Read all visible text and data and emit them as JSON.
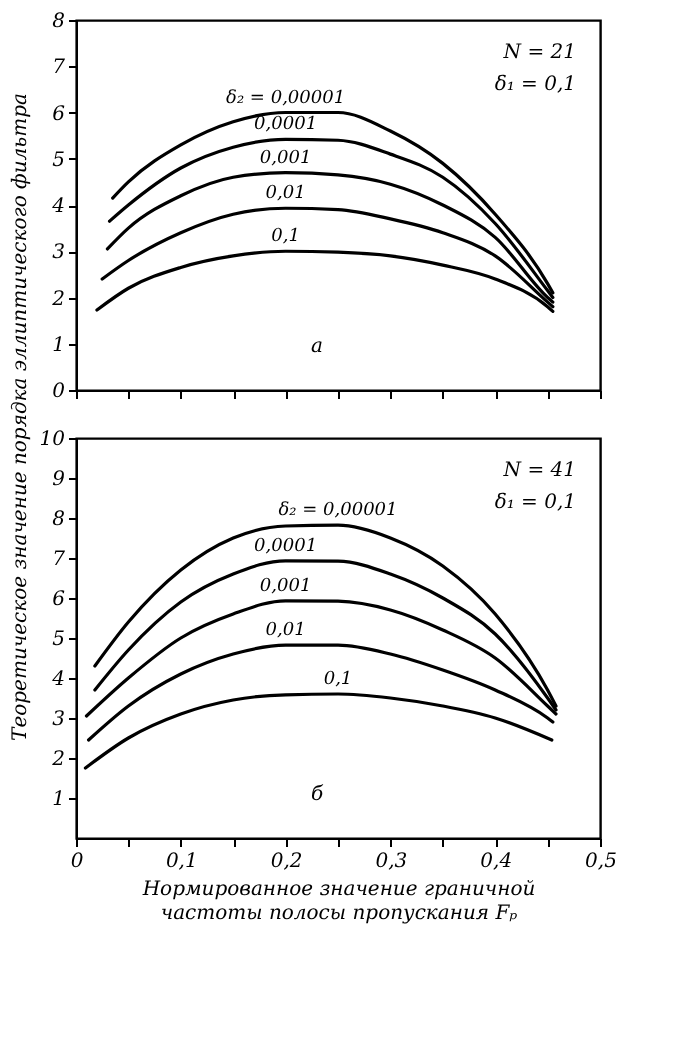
{
  "chart_data": [
    {
      "type": "line",
      "ylabel": "Теоретическое значение порядка эллиптического фильтра",
      "xlim": [
        0,
        0.5
      ],
      "xticks": [
        {
          "value": 0,
          "label": null
        },
        {
          "value": 0.05,
          "label": null
        },
        {
          "value": 0.1,
          "label": null
        },
        {
          "value": 0.15,
          "label": null
        },
        {
          "value": 0.2,
          "label": null
        },
        {
          "value": 0.25,
          "label": null
        },
        {
          "value": 0.3,
          "label": null
        },
        {
          "value": 0.35,
          "label": null
        },
        {
          "value": 0.4,
          "label": null
        },
        {
          "value": 0.45,
          "label": null
        },
        {
          "value": 0.5,
          "label": null
        }
      ],
      "ylim": [
        0,
        8
      ],
      "yticks": [
        0,
        1,
        2,
        3,
        4,
        5,
        6,
        7,
        8
      ],
      "tick_labels": "y",
      "grid": false,
      "legend": false,
      "marker": "none",
      "line_style": "solid",
      "annotations": [
        "N = 21",
        "δ₁ = 0,1",
        "а"
      ],
      "series": [
        {
          "name": "δ₂ = 0,00001",
          "color": "#000000",
          "x": [
            0.035,
            0.05,
            0.1,
            0.15,
            0.2,
            0.25,
            0.3,
            0.35,
            0.4,
            0.45,
            0.455
          ],
          "values": [
            4.15,
            4.5,
            5.3,
            5.8,
            6.0,
            6.0,
            5.6,
            4.9,
            3.8,
            2.3,
            2.1
          ]
        },
        {
          "name": "0,0001",
          "color": "#000000",
          "x": [
            0.032,
            0.05,
            0.1,
            0.15,
            0.2,
            0.25,
            0.3,
            0.35,
            0.4,
            0.45,
            0.455
          ],
          "values": [
            3.65,
            4.0,
            4.8,
            5.25,
            5.42,
            5.4,
            5.1,
            4.6,
            3.6,
            2.15,
            2.0
          ]
        },
        {
          "name": "0,001",
          "color": "#000000",
          "x": [
            0.03,
            0.05,
            0.1,
            0.15,
            0.2,
            0.25,
            0.3,
            0.35,
            0.4,
            0.45,
            0.455
          ],
          "values": [
            3.05,
            3.5,
            4.2,
            4.6,
            4.7,
            4.65,
            4.45,
            4.0,
            3.3,
            2.0,
            1.9
          ]
        },
        {
          "name": "0,01",
          "color": "#000000",
          "x": [
            0.025,
            0.05,
            0.1,
            0.15,
            0.2,
            0.25,
            0.3,
            0.35,
            0.4,
            0.45,
            0.455
          ],
          "values": [
            2.4,
            2.8,
            3.4,
            3.8,
            3.93,
            3.9,
            3.7,
            3.4,
            2.9,
            1.9,
            1.8
          ]
        },
        {
          "name": "0,1",
          "color": "#000000",
          "x": [
            0.02,
            0.05,
            0.1,
            0.15,
            0.2,
            0.25,
            0.3,
            0.35,
            0.4,
            0.45,
            0.455
          ],
          "values": [
            1.73,
            2.2,
            2.65,
            2.9,
            3.0,
            2.98,
            2.9,
            2.7,
            2.4,
            1.8,
            1.7
          ]
        }
      ]
    },
    {
      "type": "line",
      "xlabel": "Нормированное значение граничной\nчастоты полосы пропускания Fₚ",
      "xlim": [
        0,
        0.5
      ],
      "xticks": [
        {
          "value": 0,
          "label": "0"
        },
        {
          "value": 0.05,
          "label": null
        },
        {
          "value": 0.1,
          "label": "0,1"
        },
        {
          "value": 0.15,
          "label": null
        },
        {
          "value": 0.2,
          "label": "0,2"
        },
        {
          "value": 0.25,
          "label": null
        },
        {
          "value": 0.3,
          "label": "0,3"
        },
        {
          "value": 0.35,
          "label": null
        },
        {
          "value": 0.4,
          "label": "0,4"
        },
        {
          "value": 0.45,
          "label": null
        },
        {
          "value": 0.5,
          "label": "0,5"
        }
      ],
      "ylim": [
        0,
        10
      ],
      "yticks": [
        1,
        2,
        3,
        4,
        5,
        6,
        7,
        8,
        9,
        10
      ],
      "grid": false,
      "legend": false,
      "marker": "none",
      "line_style": "solid",
      "annotations": [
        "N = 41",
        "δ₁ = 0,1",
        "б"
      ],
      "series": [
        {
          "name": "δ₂ = 0,00001",
          "color": "#000000",
          "x": [
            0.018,
            0.05,
            0.1,
            0.15,
            0.2,
            0.25,
            0.3,
            0.35,
            0.4,
            0.45,
            0.458
          ],
          "values": [
            4.3,
            5.4,
            6.7,
            7.5,
            7.8,
            7.82,
            7.5,
            6.8,
            5.6,
            3.7,
            3.3
          ]
        },
        {
          "name": "0,0001",
          "color": "#000000",
          "x": [
            0.018,
            0.05,
            0.1,
            0.15,
            0.2,
            0.25,
            0.3,
            0.35,
            0.4,
            0.45,
            0.458
          ],
          "values": [
            3.7,
            4.7,
            5.9,
            6.6,
            6.93,
            6.92,
            6.6,
            6.0,
            5.1,
            3.5,
            3.2
          ]
        },
        {
          "name": "0,001",
          "color": "#000000",
          "x": [
            0.01,
            0.05,
            0.1,
            0.15,
            0.2,
            0.25,
            0.3,
            0.35,
            0.4,
            0.45,
            0.458
          ],
          "values": [
            3.05,
            4.0,
            5.0,
            5.6,
            5.93,
            5.92,
            5.7,
            5.2,
            4.5,
            3.3,
            3.1
          ]
        },
        {
          "name": "0,01",
          "color": "#000000",
          "x": [
            0.012,
            0.05,
            0.1,
            0.15,
            0.2,
            0.25,
            0.3,
            0.35,
            0.4,
            0.45,
            0.455
          ],
          "values": [
            2.45,
            3.3,
            4.1,
            4.6,
            4.82,
            4.82,
            4.6,
            4.2,
            3.7,
            3.0,
            2.9
          ]
        },
        {
          "name": "0,1",
          "color": "#000000",
          "x": [
            0.009,
            0.05,
            0.1,
            0.15,
            0.2,
            0.25,
            0.3,
            0.35,
            0.4,
            0.454
          ],
          "values": [
            1.75,
            2.5,
            3.1,
            3.45,
            3.58,
            3.6,
            3.5,
            3.3,
            3.0,
            2.45
          ]
        }
      ]
    }
  ]
}
